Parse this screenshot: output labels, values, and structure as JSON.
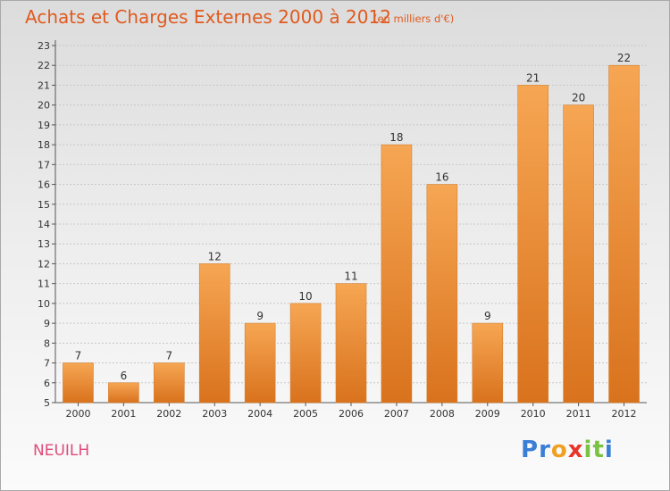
{
  "header": {
    "title": "Achats et Charges Externes 2000 à 2012",
    "unit": "(en milliers d'€)"
  },
  "footer": {
    "commune": "NEUILH",
    "logo_letters": [
      "P",
      "r",
      "o",
      "x",
      "i",
      "t",
      "i"
    ],
    "logo_colors": [
      "#3a7fd5",
      "#3a7fd5",
      "#f0a020",
      "#e8342a",
      "#7cc242",
      "#7cc242",
      "#3a7fd5"
    ]
  },
  "colors": {
    "bar_light": "#f6a653",
    "bar_dark": "#d9721d",
    "bar_edge": "#d48030",
    "grid": "#c8c8c8",
    "axis": "#555555",
    "title": "#e05a1e",
    "commune": "#e04a7a"
  },
  "chart_data": {
    "type": "bar",
    "title": "Achats et Charges Externes 2000 à 2012",
    "subtitle": "(en milliers d'€)",
    "categories": [
      "2000",
      "2001",
      "2002",
      "2003",
      "2004",
      "2005",
      "2006",
      "2007",
      "2008",
      "2009",
      "2010",
      "2011",
      "2012"
    ],
    "values": [
      7,
      6,
      7,
      12,
      9,
      10,
      11,
      18,
      16,
      9,
      21,
      20,
      22
    ],
    "xlabel": "",
    "ylabel": "",
    "ylim": [
      5,
      23
    ],
    "yticks": [
      5,
      6,
      7,
      8,
      9,
      10,
      11,
      12,
      13,
      14,
      15,
      16,
      17,
      18,
      19,
      20,
      21,
      22,
      23
    ],
    "grid": true,
    "data_labels": true
  }
}
